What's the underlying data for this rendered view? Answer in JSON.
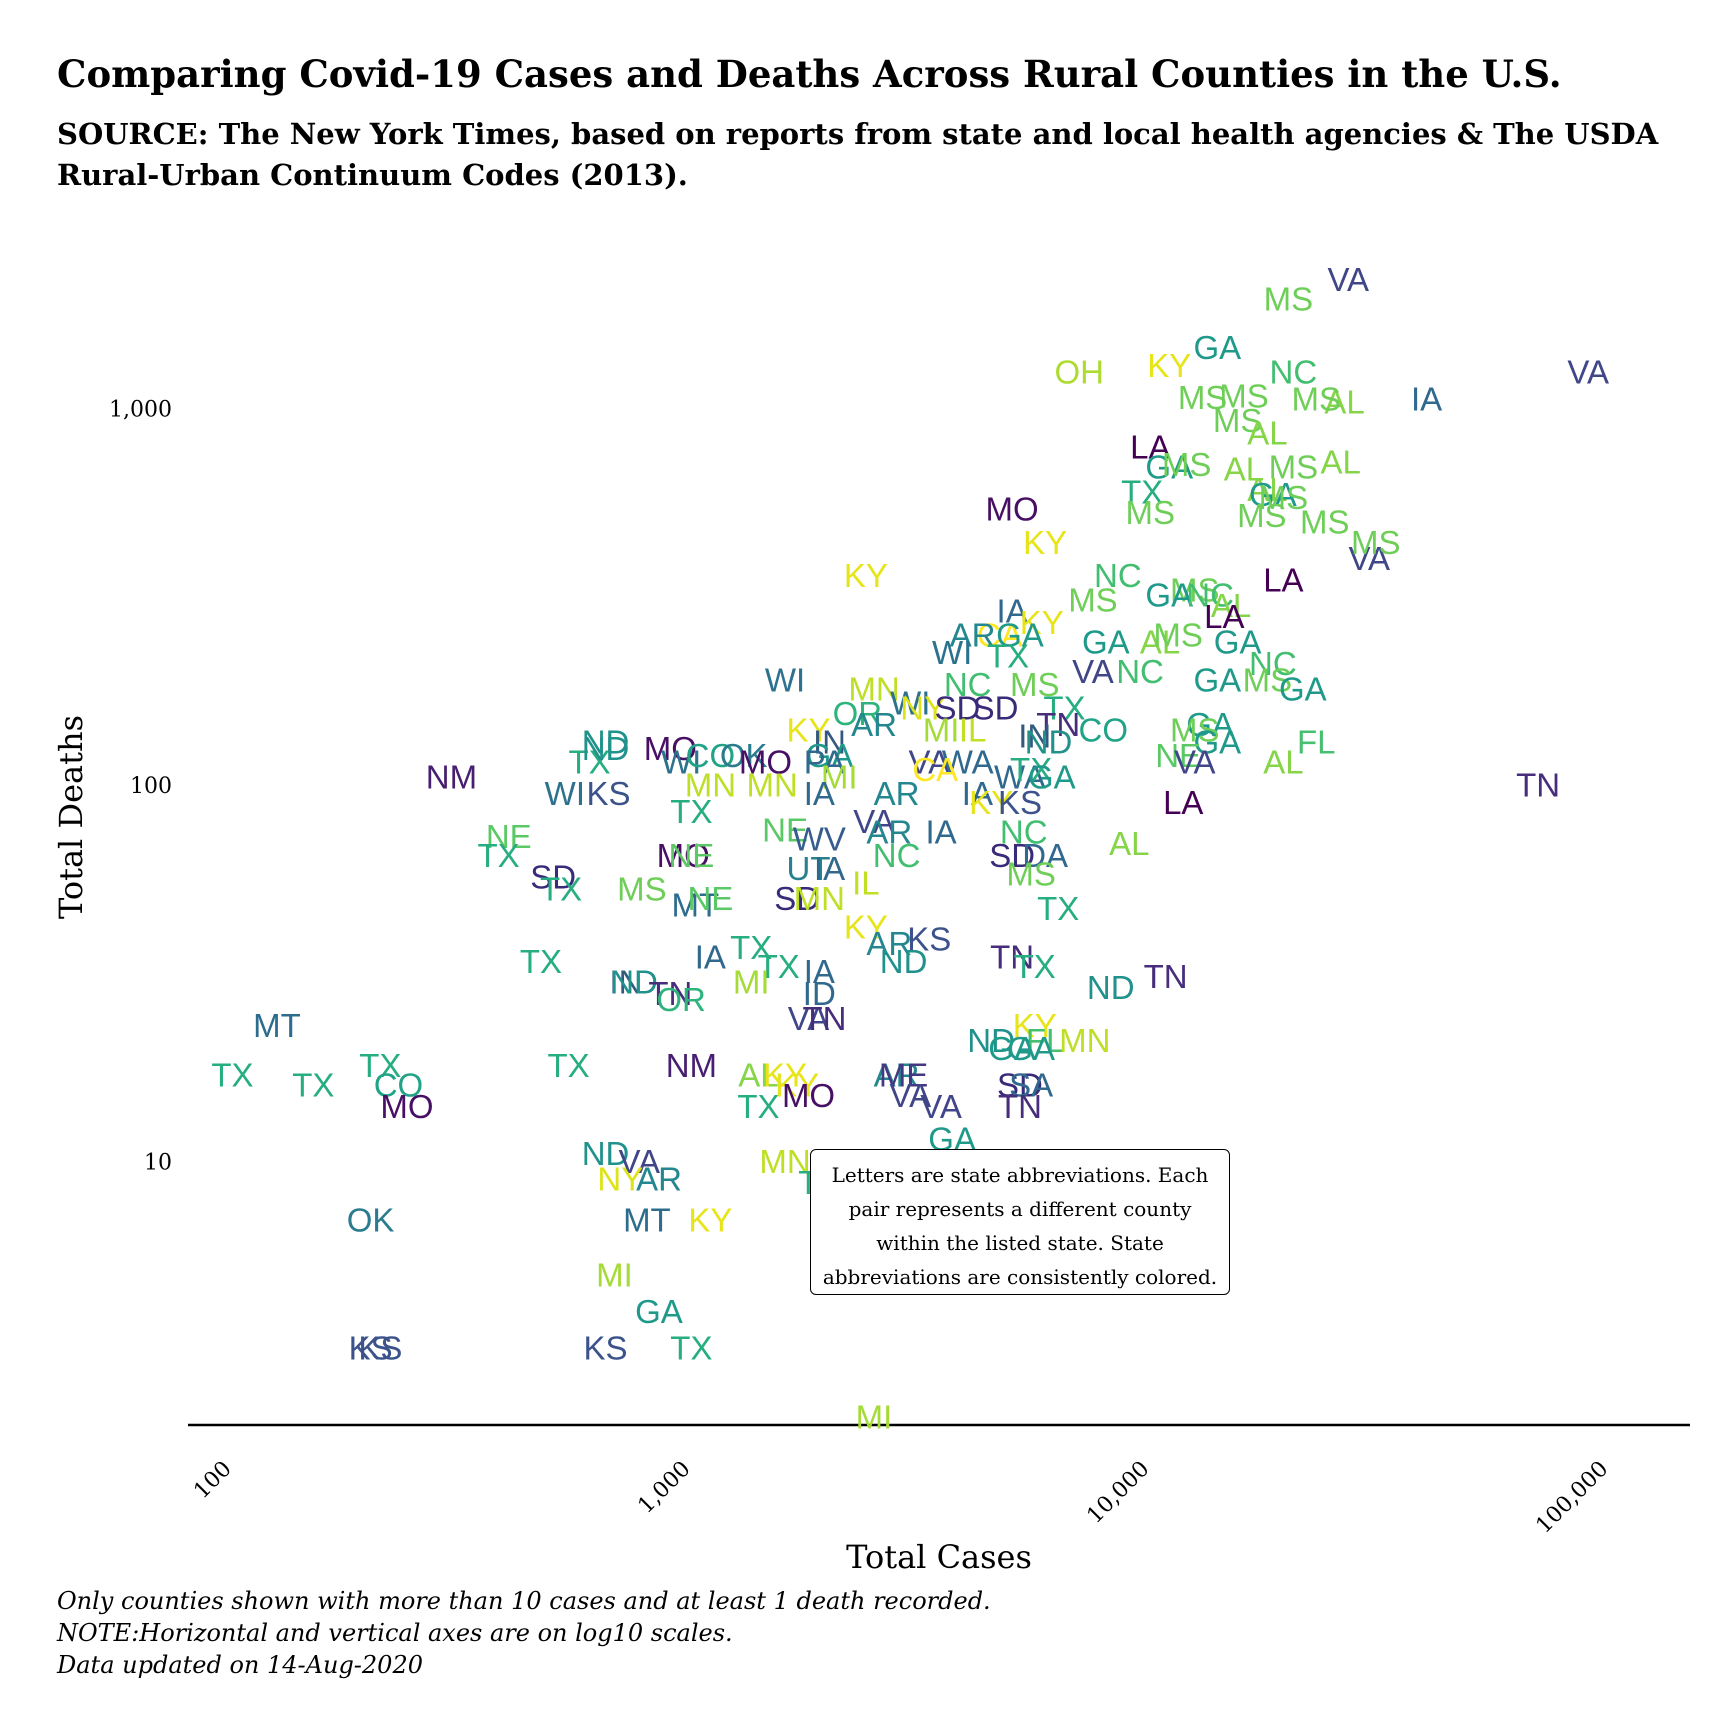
{
  "title": "Comparing Covid-19 Cases and Deaths Across Rural Counties in the U.S.",
  "subtitle": "SOURCE: The New York Times, based on reports from state and local health agencies & The USDA Rural-Urban Continuum Codes (2013).",
  "annotation": "Letters are state abbreviations. Each pair represents a different county within the listed state. State abbreviations are consistently colored.",
  "footnotes": [
    "Only counties shown with more than 10 cases and at least 1 death recorded.",
    "NOTE:Horizontal and vertical axes are on log10 scales.",
    "Data updated on 14-Aug-2020"
  ],
  "chart_data": {
    "type": "scatter",
    "title": "Comparing Covid-19 Cases and Deaths Across Rural Counties in the U.S.",
    "xlabel": "Total Cases",
    "ylabel": "Total Deaths",
    "xscale": "log10",
    "yscale": "log10",
    "xlim": [
      80,
      150000
    ],
    "ylim": [
      2,
      2800
    ],
    "xticks": [
      100,
      1000,
      10000,
      100000
    ],
    "xtick_labels": [
      "100",
      "1,000",
      "10,000",
      "100,000"
    ],
    "yticks": [
      10,
      100,
      1000
    ],
    "ytick_labels": [
      "10",
      "100",
      "1,000"
    ],
    "grid": false,
    "legend": "none",
    "marker": "state abbreviation text",
    "state_colors": {
      "LA": "#440154",
      "MO": "#471064",
      "NM": "#481f70",
      "TN": "#472d7b",
      "ME": "#453781",
      "VA": "#404688",
      "KS": "#3b528b",
      "WV": "#365d8d",
      "IA": "#31688e",
      "WI": "#2c728e",
      "MT": "#2d6c8e",
      "OK": "#2a7b8e",
      "UT": "#27808e",
      "AR": "#24868e",
      "SD": "#3a2a7a",
      "ND": "#21918c",
      "GA": "#1f9a8a",
      "IN": "#34597f",
      "CO": "#20a386",
      "TX": "#26ad81",
      "OR": "#2eb37c",
      "NC": "#42be71",
      "NE": "#5ac864",
      "MS": "#6ece58",
      "AL": "#86d549",
      "FL": "#46c06f",
      "MI": "#a5db36",
      "MN": "#bddf26",
      "IL": "#c2df23",
      "NY": "#dde318",
      "KY": "#e7e419",
      "CA": "#fde725",
      "OH": "#addc30"
    },
    "points": [
      {
        "state": "VA",
        "x": 27000,
        "y": 2200
      },
      {
        "state": "MS",
        "x": 20000,
        "y": 1950
      },
      {
        "state": "GA",
        "x": 14000,
        "y": 1450
      },
      {
        "state": "NC",
        "x": 20500,
        "y": 1250
      },
      {
        "state": "KY",
        "x": 11000,
        "y": 1300
      },
      {
        "state": "OH",
        "x": 7000,
        "y": 1250
      },
      {
        "state": "VA",
        "x": 90000,
        "y": 1250
      },
      {
        "state": "IA",
        "x": 40000,
        "y": 1060
      },
      {
        "state": "AL",
        "x": 26500,
        "y": 1040
      },
      {
        "state": "MS",
        "x": 13000,
        "y": 1070
      },
      {
        "state": "MS",
        "x": 16000,
        "y": 1080
      },
      {
        "state": "MS",
        "x": 23000,
        "y": 1060
      },
      {
        "state": "MS",
        "x": 15500,
        "y": 930
      },
      {
        "state": "AL",
        "x": 18000,
        "y": 860
      },
      {
        "state": "LA",
        "x": 10000,
        "y": 790
      },
      {
        "state": "GA",
        "x": 11000,
        "y": 700
      },
      {
        "state": "MS",
        "x": 12000,
        "y": 710
      },
      {
        "state": "AL",
        "x": 16000,
        "y": 690
      },
      {
        "state": "MS",
        "x": 20500,
        "y": 700
      },
      {
        "state": "AL",
        "x": 26000,
        "y": 720
      },
      {
        "state": "TX",
        "x": 9600,
        "y": 600
      },
      {
        "state": "AL",
        "x": 18000,
        "y": 610
      },
      {
        "state": "GA",
        "x": 18500,
        "y": 590
      },
      {
        "state": "MS",
        "x": 19500,
        "y": 580
      },
      {
        "state": "MS",
        "x": 10000,
        "y": 530
      },
      {
        "state": "MS",
        "x": 17500,
        "y": 520
      },
      {
        "state": "MS",
        "x": 24000,
        "y": 500
      },
      {
        "state": "MO",
        "x": 5000,
        "y": 540
      },
      {
        "state": "KY",
        "x": 5900,
        "y": 440
      },
      {
        "state": "VA",
        "x": 30000,
        "y": 400
      },
      {
        "state": "MS",
        "x": 31000,
        "y": 440
      },
      {
        "state": "KY",
        "x": 2400,
        "y": 360
      },
      {
        "state": "NC",
        "x": 8500,
        "y": 360
      },
      {
        "state": "LA",
        "x": 19500,
        "y": 350
      },
      {
        "state": "MS",
        "x": 12500,
        "y": 330
      },
      {
        "state": "GA",
        "x": 11000,
        "y": 320
      },
      {
        "state": "NC",
        "x": 13500,
        "y": 320
      },
      {
        "state": "MS",
        "x": 7500,
        "y": 310
      },
      {
        "state": "IA",
        "x": 5000,
        "y": 290
      },
      {
        "state": "AL",
        "x": 15000,
        "y": 300
      },
      {
        "state": "LA",
        "x": 14500,
        "y": 280
      },
      {
        "state": "KY",
        "x": 5800,
        "y": 270
      },
      {
        "state": "CA",
        "x": 4700,
        "y": 250
      },
      {
        "state": "AR",
        "x": 4100,
        "y": 250
      },
      {
        "state": "GA",
        "x": 5200,
        "y": 250
      },
      {
        "state": "GA",
        "x": 8000,
        "y": 240
      },
      {
        "state": "AL",
        "x": 10500,
        "y": 240
      },
      {
        "state": "MS",
        "x": 11500,
        "y": 250
      },
      {
        "state": "GA",
        "x": 15500,
        "y": 240
      },
      {
        "state": "WI",
        "x": 3700,
        "y": 225
      },
      {
        "state": "TX",
        "x": 4900,
        "y": 220
      },
      {
        "state": "VA",
        "x": 7500,
        "y": 200
      },
      {
        "state": "NC",
        "x": 9500,
        "y": 200
      },
      {
        "state": "NC",
        "x": 18500,
        "y": 210
      },
      {
        "state": "GA",
        "x": 14000,
        "y": 190
      },
      {
        "state": "MS",
        "x": 18000,
        "y": 190
      },
      {
        "state": "GA",
        "x": 21500,
        "y": 180
      },
      {
        "state": "WI",
        "x": 1600,
        "y": 190
      },
      {
        "state": "MN",
        "x": 2500,
        "y": 180
      },
      {
        "state": "NC",
        "x": 4000,
        "y": 185
      },
      {
        "state": "MS",
        "x": 5600,
        "y": 185
      },
      {
        "state": "WI",
        "x": 3000,
        "y": 165
      },
      {
        "state": "SD",
        "x": 4600,
        "y": 160
      },
      {
        "state": "TX",
        "x": 6500,
        "y": 160
      },
      {
        "state": "GA",
        "x": 13500,
        "y": 145
      },
      {
        "state": "KY",
        "x": 1800,
        "y": 140
      },
      {
        "state": "OR",
        "x": 2300,
        "y": 155
      },
      {
        "state": "NY",
        "x": 3200,
        "y": 160
      },
      {
        "state": "SD",
        "x": 3800,
        "y": 160
      },
      {
        "state": "TN",
        "x": 6300,
        "y": 145
      },
      {
        "state": "CO",
        "x": 7900,
        "y": 140
      },
      {
        "state": "MS",
        "x": 12500,
        "y": 140
      },
      {
        "state": "GA",
        "x": 14000,
        "y": 130
      },
      {
        "state": "FL",
        "x": 23000,
        "y": 130
      },
      {
        "state": "ND",
        "x": 650,
        "y": 130
      },
      {
        "state": "MO",
        "x": 900,
        "y": 125
      },
      {
        "state": "IN",
        "x": 2000,
        "y": 130
      },
      {
        "state": "AR",
        "x": 2500,
        "y": 145
      },
      {
        "state": "MI",
        "x": 3500,
        "y": 140
      },
      {
        "state": "IL",
        "x": 4100,
        "y": 140
      },
      {
        "state": "IN",
        "x": 5600,
        "y": 135
      },
      {
        "state": "ND",
        "x": 6000,
        "y": 130
      },
      {
        "state": "TX",
        "x": 600,
        "y": 115
      },
      {
        "state": "ND",
        "x": 650,
        "y": 125
      },
      {
        "state": "WI",
        "x": 950,
        "y": 115
      },
      {
        "state": "CO",
        "x": 1100,
        "y": 120
      },
      {
        "state": "OK",
        "x": 1300,
        "y": 120
      },
      {
        "state": "MO",
        "x": 1450,
        "y": 115
      },
      {
        "state": "GA",
        "x": 2000,
        "y": 120
      },
      {
        "state": "PA",
        "x": 1950,
        "y": 115
      },
      {
        "state": "VA",
        "x": 3300,
        "y": 115
      },
      {
        "state": "WA",
        "x": 4000,
        "y": 115
      },
      {
        "state": "NE",
        "x": 11500,
        "y": 120
      },
      {
        "state": "VA",
        "x": 12500,
        "y": 115
      },
      {
        "state": "AL",
        "x": 19500,
        "y": 115
      },
      {
        "state": "NM",
        "x": 300,
        "y": 105
      },
      {
        "state": "WI",
        "x": 530,
        "y": 95
      },
      {
        "state": "KS",
        "x": 660,
        "y": 95
      },
      {
        "state": "MN",
        "x": 1100,
        "y": 100
      },
      {
        "state": "MN",
        "x": 1500,
        "y": 100
      },
      {
        "state": "MI",
        "x": 2100,
        "y": 105
      },
      {
        "state": "CA",
        "x": 3400,
        "y": 110
      },
      {
        "state": "IA",
        "x": 4200,
        "y": 95
      },
      {
        "state": "TN",
        "x": 70000,
        "y": 100
      },
      {
        "state": "WA",
        "x": 5200,
        "y": 105
      },
      {
        "state": "TX",
        "x": 5500,
        "y": 110
      },
      {
        "state": "GA",
        "x": 6100,
        "y": 105
      },
      {
        "state": "IA",
        "x": 1900,
        "y": 95
      },
      {
        "state": "AR",
        "x": 2800,
        "y": 95
      },
      {
        "state": "KY",
        "x": 4500,
        "y": 90
      },
      {
        "state": "KS",
        "x": 5200,
        "y": 90
      },
      {
        "state": "LA",
        "x": 11800,
        "y": 90
      },
      {
        "state": "TX",
        "x": 1000,
        "y": 85
      },
      {
        "state": "VA",
        "x": 2500,
        "y": 80
      },
      {
        "state": "NE",
        "x": 1600,
        "y": 76
      },
      {
        "state": "AR",
        "x": 2700,
        "y": 75
      },
      {
        "state": "IA",
        "x": 3500,
        "y": 75
      },
      {
        "state": "NC",
        "x": 5300,
        "y": 75
      },
      {
        "state": "NE",
        "x": 400,
        "y": 73
      },
      {
        "state": "TX",
        "x": 380,
        "y": 65
      },
      {
        "state": "WV",
        "x": 1900,
        "y": 72
      },
      {
        "state": "NC",
        "x": 2800,
        "y": 65
      },
      {
        "state": "AL",
        "x": 9000,
        "y": 70
      },
      {
        "state": "MO",
        "x": 960,
        "y": 65
      },
      {
        "state": "NE",
        "x": 1000,
        "y": 65
      },
      {
        "state": "UT",
        "x": 1800,
        "y": 60
      },
      {
        "state": "IA",
        "x": 2000,
        "y": 60
      },
      {
        "state": "SD",
        "x": 5000,
        "y": 65
      },
      {
        "state": "DA",
        "x": 5900,
        "y": 65
      },
      {
        "state": "IL",
        "x": 2400,
        "y": 55
      },
      {
        "state": "MS",
        "x": 5500,
        "y": 58
      },
      {
        "state": "SD",
        "x": 500,
        "y": 57
      },
      {
        "state": "TX",
        "x": 520,
        "y": 53
      },
      {
        "state": "MS",
        "x": 780,
        "y": 53
      },
      {
        "state": "MT",
        "x": 1020,
        "y": 48
      },
      {
        "state": "NE",
        "x": 1100,
        "y": 50
      },
      {
        "state": "SD",
        "x": 1700,
        "y": 50
      },
      {
        "state": "MN",
        "x": 1900,
        "y": 50
      },
      {
        "state": "TX",
        "x": 6300,
        "y": 47
      },
      {
        "state": "KY",
        "x": 2400,
        "y": 42
      },
      {
        "state": "AR",
        "x": 2700,
        "y": 38
      },
      {
        "state": "KS",
        "x": 3300,
        "y": 39
      },
      {
        "state": "IA",
        "x": 1100,
        "y": 35
      },
      {
        "state": "TX",
        "x": 1350,
        "y": 37
      },
      {
        "state": "TN",
        "x": 5000,
        "y": 35
      },
      {
        "state": "TX",
        "x": 470,
        "y": 34
      },
      {
        "state": "TX",
        "x": 1550,
        "y": 33
      },
      {
        "state": "IA",
        "x": 1900,
        "y": 32
      },
      {
        "state": "TX",
        "x": 5600,
        "y": 33
      },
      {
        "state": "ND",
        "x": 2900,
        "y": 34
      },
      {
        "state": "MI",
        "x": 1350,
        "y": 30
      },
      {
        "state": "IN",
        "x": 720,
        "y": 30
      },
      {
        "state": "ND",
        "x": 750,
        "y": 30
      },
      {
        "state": "TN",
        "x": 900,
        "y": 28
      },
      {
        "state": "OR",
        "x": 950,
        "y": 27
      },
      {
        "state": "ID",
        "x": 1900,
        "y": 28
      },
      {
        "state": "ND",
        "x": 8200,
        "y": 29
      },
      {
        "state": "TN",
        "x": 10800,
        "y": 31
      },
      {
        "state": "VA",
        "x": 1800,
        "y": 24
      },
      {
        "state": "TN",
        "x": 1950,
        "y": 24
      },
      {
        "state": "MT",
        "x": 125,
        "y": 23
      },
      {
        "state": "KY",
        "x": 5600,
        "y": 23
      },
      {
        "state": "FL",
        "x": 5900,
        "y": 21
      },
      {
        "state": "MN",
        "x": 7200,
        "y": 21
      },
      {
        "state": "ND",
        "x": 4500,
        "y": 21
      },
      {
        "state": "GA",
        "x": 5000,
        "y": 20
      },
      {
        "state": "GA",
        "x": 5500,
        "y": 20
      },
      {
        "state": "TX",
        "x": 210,
        "y": 18
      },
      {
        "state": "TX",
        "x": 540,
        "y": 18
      },
      {
        "state": "NM",
        "x": 1000,
        "y": 18
      },
      {
        "state": "AL",
        "x": 1400,
        "y": 17
      },
      {
        "state": "KY",
        "x": 1600,
        "y": 17
      },
      {
        "state": "AR",
        "x": 2800,
        "y": 17
      },
      {
        "state": "ME",
        "x": 2900,
        "y": 17
      },
      {
        "state": "TX",
        "x": 100,
        "y": 17
      },
      {
        "state": "TX",
        "x": 150,
        "y": 16
      },
      {
        "state": "CO",
        "x": 230,
        "y": 16
      },
      {
        "state": "SD",
        "x": 5200,
        "y": 16
      },
      {
        "state": "SA",
        "x": 5500,
        "y": 16
      },
      {
        "state": "KY",
        "x": 1700,
        "y": 16
      },
      {
        "state": "MO",
        "x": 1800,
        "y": 15
      },
      {
        "state": "MO",
        "x": 240,
        "y": 14
      },
      {
        "state": "VA",
        "x": 3000,
        "y": 15
      },
      {
        "state": "VA",
        "x": 3500,
        "y": 14
      },
      {
        "state": "TN",
        "x": 5200,
        "y": 14
      },
      {
        "state": "TX",
        "x": 1400,
        "y": 14
      },
      {
        "state": "GA",
        "x": 3700,
        "y": 11.5
      },
      {
        "state": "ND",
        "x": 650,
        "y": 10.5
      },
      {
        "state": "VA",
        "x": 770,
        "y": 10
      },
      {
        "state": "MN",
        "x": 1600,
        "y": 10
      },
      {
        "state": "NY",
        "x": 700,
        "y": 9
      },
      {
        "state": "AR",
        "x": 850,
        "y": 9
      },
      {
        "state": "TX",
        "x": 1900,
        "y": 8.8
      },
      {
        "state": "OK",
        "x": 200,
        "y": 7
      },
      {
        "state": "MT",
        "x": 800,
        "y": 7
      },
      {
        "state": "KY",
        "x": 1100,
        "y": 7
      },
      {
        "state": "MI",
        "x": 680,
        "y": 5
      },
      {
        "state": "GA",
        "x": 850,
        "y": 4
      },
      {
        "state": "KS",
        "x": 210,
        "y": 3.2
      },
      {
        "state": "KS",
        "x": 200,
        "y": 3.2
      },
      {
        "state": "KS",
        "x": 650,
        "y": 3.2
      },
      {
        "state": "TX",
        "x": 1000,
        "y": 3.2
      },
      {
        "state": "MI",
        "x": 2500,
        "y": 2.1
      }
    ]
  }
}
